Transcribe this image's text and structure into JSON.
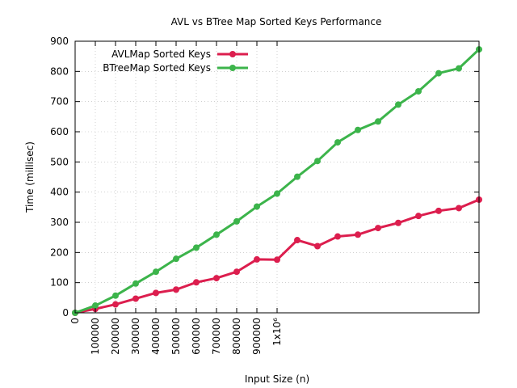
{
  "chart_data": {
    "type": "line",
    "title": "AVL vs BTree Map Sorted Keys Performance",
    "xlabel": "Input Size (n)",
    "ylabel": "Time (millisec)",
    "xlim": [
      0,
      2000000
    ],
    "ylim": [
      0,
      900
    ],
    "xticks": [
      {
        "value": 0,
        "label": "0"
      },
      {
        "value": 100000,
        "label": "100000"
      },
      {
        "value": 200000,
        "label": "200000"
      },
      {
        "value": 300000,
        "label": "300000"
      },
      {
        "value": 400000,
        "label": "400000"
      },
      {
        "value": 500000,
        "label": "500000"
      },
      {
        "value": 600000,
        "label": "600000"
      },
      {
        "value": 700000,
        "label": "700000"
      },
      {
        "value": 800000,
        "label": "800000"
      },
      {
        "value": 900000,
        "label": "900000"
      },
      {
        "value": 1000000,
        "label": "1x10⁶"
      }
    ],
    "yticks": [
      0,
      100,
      200,
      300,
      400,
      500,
      600,
      700,
      800,
      900
    ],
    "grid": true,
    "legend_position": "top-left",
    "x": [
      0,
      100000,
      200000,
      300000,
      400000,
      500000,
      600000,
      700000,
      800000,
      900000,
      1000000,
      1100000,
      1200000,
      1300000,
      1400000,
      1500000,
      1600000,
      1700000,
      1800000,
      1900000,
      2000000
    ],
    "series": [
      {
        "name": "AVLMap Sorted Keys",
        "color": "#dc1e4e",
        "values": [
          0,
          13,
          28,
          47,
          66,
          77,
          101,
          115,
          136,
          177,
          176,
          241,
          221,
          253,
          259,
          281,
          298,
          321,
          338,
          347,
          375
        ]
      },
      {
        "name": "BTreeMap Sorted Keys",
        "color": "#3cb44b",
        "values": [
          0,
          24,
          57,
          97,
          136,
          179,
          216,
          259,
          303,
          352,
          395,
          451,
          503,
          565,
          606,
          634,
          690,
          734,
          794,
          810,
          873
        ]
      }
    ]
  }
}
